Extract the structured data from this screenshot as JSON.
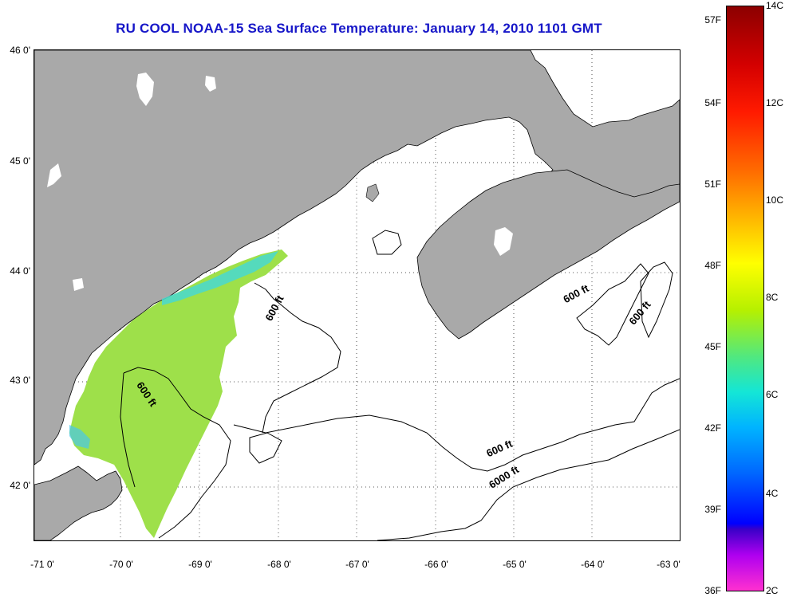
{
  "title": "RU COOL  NOAA-15  Sea Surface Temperature:  January 14, 2010 1101 GMT",
  "latitude_labels": [
    "46 0'",
    "45 0'",
    "44 0'",
    "43 0'",
    "42 0'"
  ],
  "longitude_labels": [
    "-71 0'",
    "-70 0'",
    "-69 0'",
    "-68 0'",
    "-67 0'",
    "-66 0'",
    "-65 0'",
    "-64 0'",
    "-63 0'"
  ],
  "contour_labels": [
    "600 ft",
    "600 ft",
    "600 ft",
    "600 ft",
    "600 ft",
    "6000 ft"
  ],
  "colorbar": {
    "fahrenheit_labels": [
      "57F",
      "54F",
      "51F",
      "48F",
      "45F",
      "42F",
      "39F",
      "36F"
    ],
    "celsius_labels": [
      "14C",
      "12C",
      "10C",
      "8C",
      "6C",
      "4C",
      "2C"
    ],
    "range_c": [
      2,
      14
    ],
    "colors": {
      "max": "#8c0000",
      "mid": "#ffff00",
      "low": "#00b4ff",
      "min": "#ff30d0"
    }
  },
  "colors": {
    "land": "#a9a9a9",
    "title": "#1616c8",
    "sst_patch": "#9ee04a"
  }
}
